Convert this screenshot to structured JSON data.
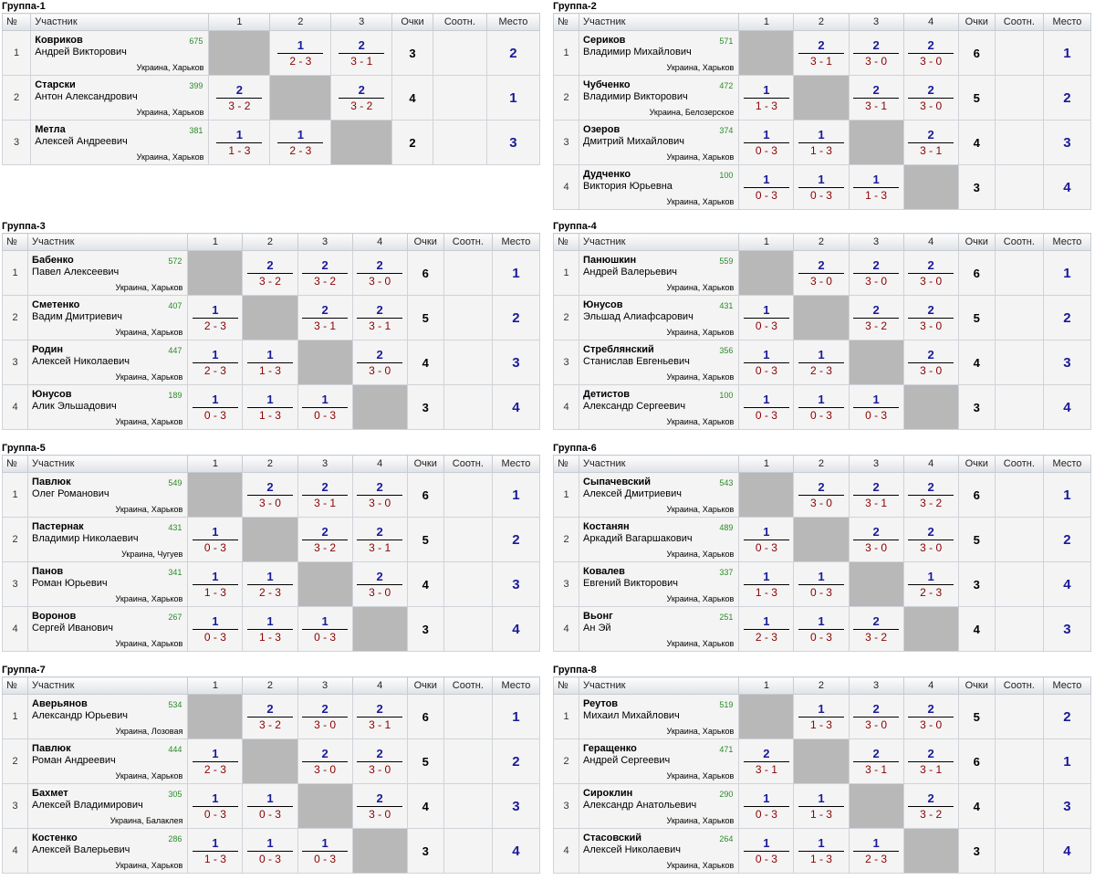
{
  "headers": {
    "num": "№",
    "player": "Участник",
    "points": "Очки",
    "ratio": "Соотн.",
    "place": "Место"
  },
  "groups": [
    {
      "title": "Группа-1",
      "cols": [
        "1",
        "2",
        "3"
      ],
      "rows": [
        {
          "n": "1",
          "last": "Ковриков",
          "first": "Андрей Викторович",
          "rating": "675",
          "loc": "Украина, Харьков",
          "cells": [
            null,
            {
              "p": "1",
              "s": "2 - 3"
            },
            {
              "p": "2",
              "s": "3 - 1"
            }
          ],
          "score": "3",
          "ratio": "",
          "place": "2"
        },
        {
          "n": "2",
          "last": "Старски",
          "first": "Антон Александрович",
          "rating": "399",
          "loc": "Украина, Харьков",
          "cells": [
            {
              "p": "2",
              "s": "3 - 2"
            },
            null,
            {
              "p": "2",
              "s": "3 - 2"
            }
          ],
          "score": "4",
          "ratio": "",
          "place": "1"
        },
        {
          "n": "3",
          "last": "Метла",
          "first": "Алексей Андреевич",
          "rating": "381",
          "loc": "Украина, Харьков",
          "cells": [
            {
              "p": "1",
              "s": "1 - 3"
            },
            {
              "p": "1",
              "s": "2 - 3"
            },
            null
          ],
          "score": "2",
          "ratio": "",
          "place": "3"
        }
      ]
    },
    {
      "title": "Группа-2",
      "cols": [
        "1",
        "2",
        "3",
        "4"
      ],
      "rows": [
        {
          "n": "1",
          "last": "Сериков",
          "first": "Владимир Михайлович",
          "rating": "571",
          "loc": "Украина, Харьков",
          "cells": [
            null,
            {
              "p": "2",
              "s": "3 - 1"
            },
            {
              "p": "2",
              "s": "3 - 0"
            },
            {
              "p": "2",
              "s": "3 - 0"
            }
          ],
          "score": "6",
          "ratio": "",
          "place": "1"
        },
        {
          "n": "2",
          "last": "Чубченко",
          "first": "Владимир Викторович",
          "rating": "472",
          "loc": "Украина, Белозерское",
          "cells": [
            {
              "p": "1",
              "s": "1 - 3"
            },
            null,
            {
              "p": "2",
              "s": "3 - 1"
            },
            {
              "p": "2",
              "s": "3 - 0"
            }
          ],
          "score": "5",
          "ratio": "",
          "place": "2"
        },
        {
          "n": "3",
          "last": "Озеров",
          "first": "Дмитрий Михайлович",
          "rating": "374",
          "loc": "Украина, Харьков",
          "cells": [
            {
              "p": "1",
              "s": "0 - 3"
            },
            {
              "p": "1",
              "s": "1 - 3"
            },
            null,
            {
              "p": "2",
              "s": "3 - 1"
            }
          ],
          "score": "4",
          "ratio": "",
          "place": "3"
        },
        {
          "n": "4",
          "last": "Дудченко",
          "first": "Виктория Юрьевна",
          "rating": "100",
          "loc": "Украина, Харьков",
          "cells": [
            {
              "p": "1",
              "s": "0 - 3"
            },
            {
              "p": "1",
              "s": "0 - 3"
            },
            {
              "p": "1",
              "s": "1 - 3"
            },
            null
          ],
          "score": "3",
          "ratio": "",
          "place": "4"
        }
      ]
    },
    {
      "title": "Группа-3",
      "cols": [
        "1",
        "2",
        "3",
        "4"
      ],
      "rows": [
        {
          "n": "1",
          "last": "Бабенко",
          "first": "Павел Алексеевич",
          "rating": "572",
          "loc": "Украина, Харьков",
          "cells": [
            null,
            {
              "p": "2",
              "s": "3 - 2"
            },
            {
              "p": "2",
              "s": "3 - 2"
            },
            {
              "p": "2",
              "s": "3 - 0"
            }
          ],
          "score": "6",
          "ratio": "",
          "place": "1"
        },
        {
          "n": "2",
          "last": "Сметенко",
          "first": "Вадим Дмитриевич",
          "rating": "407",
          "loc": "Украина, Харьков",
          "cells": [
            {
              "p": "1",
              "s": "2 - 3"
            },
            null,
            {
              "p": "2",
              "s": "3 - 1"
            },
            {
              "p": "2",
              "s": "3 - 1"
            }
          ],
          "score": "5",
          "ratio": "",
          "place": "2"
        },
        {
          "n": "3",
          "last": "Родин",
          "first": "Алексей Николаевич",
          "rating": "447",
          "loc": "Украина, Харьков",
          "cells": [
            {
              "p": "1",
              "s": "2 - 3"
            },
            {
              "p": "1",
              "s": "1 - 3"
            },
            null,
            {
              "p": "2",
              "s": "3 - 0"
            }
          ],
          "score": "4",
          "ratio": "",
          "place": "3"
        },
        {
          "n": "4",
          "last": "Юнусов",
          "first": "Алик Эльшадович",
          "rating": "189",
          "loc": "Украина, Харьков",
          "cells": [
            {
              "p": "1",
              "s": "0 - 3"
            },
            {
              "p": "1",
              "s": "1 - 3"
            },
            {
              "p": "1",
              "s": "0 - 3"
            },
            null
          ],
          "score": "3",
          "ratio": "",
          "place": "4"
        }
      ]
    },
    {
      "title": "Группа-4",
      "cols": [
        "1",
        "2",
        "3",
        "4"
      ],
      "rows": [
        {
          "n": "1",
          "last": "Панюшкин",
          "first": "Андрей Валерьевич",
          "rating": "559",
          "loc": "Украина, Харьков",
          "cells": [
            null,
            {
              "p": "2",
              "s": "3 - 0"
            },
            {
              "p": "2",
              "s": "3 - 0"
            },
            {
              "p": "2",
              "s": "3 - 0"
            }
          ],
          "score": "6",
          "ratio": "",
          "place": "1"
        },
        {
          "n": "2",
          "last": "Юнусов",
          "first": "Эльшад Алиафсарович",
          "rating": "431",
          "loc": "Украина, Харьков",
          "cells": [
            {
              "p": "1",
              "s": "0 - 3"
            },
            null,
            {
              "p": "2",
              "s": "3 - 2"
            },
            {
              "p": "2",
              "s": "3 - 0"
            }
          ],
          "score": "5",
          "ratio": "",
          "place": "2"
        },
        {
          "n": "3",
          "last": "Стреблянский",
          "first": "Станислав Евгеньевич",
          "rating": "356",
          "loc": "Украина, Харьков",
          "cells": [
            {
              "p": "1",
              "s": "0 - 3"
            },
            {
              "p": "1",
              "s": "2 - 3"
            },
            null,
            {
              "p": "2",
              "s": "3 - 0"
            }
          ],
          "score": "4",
          "ratio": "",
          "place": "3"
        },
        {
          "n": "4",
          "last": "Детистов",
          "first": "Александр Сергеевич",
          "rating": "100",
          "loc": "Украина, Харьков",
          "cells": [
            {
              "p": "1",
              "s": "0 - 3"
            },
            {
              "p": "1",
              "s": "0 - 3"
            },
            {
              "p": "1",
              "s": "0 - 3"
            },
            null
          ],
          "score": "3",
          "ratio": "",
          "place": "4"
        }
      ]
    },
    {
      "title": "Группа-5",
      "cols": [
        "1",
        "2",
        "3",
        "4"
      ],
      "rows": [
        {
          "n": "1",
          "last": "Павлюк",
          "first": "Олег Романович",
          "rating": "549",
          "loc": "Украина, Харьков",
          "cells": [
            null,
            {
              "p": "2",
              "s": "3 - 0"
            },
            {
              "p": "2",
              "s": "3 - 1"
            },
            {
              "p": "2",
              "s": "3 - 0"
            }
          ],
          "score": "6",
          "ratio": "",
          "place": "1"
        },
        {
          "n": "2",
          "last": "Пастернак",
          "first": "Владимир Николаевич",
          "rating": "431",
          "loc": "Украина, Чугуев",
          "cells": [
            {
              "p": "1",
              "s": "0 - 3"
            },
            null,
            {
              "p": "2",
              "s": "3 - 2"
            },
            {
              "p": "2",
              "s": "3 - 1"
            }
          ],
          "score": "5",
          "ratio": "",
          "place": "2"
        },
        {
          "n": "3",
          "last": "Панов",
          "first": "Роман Юрьевич",
          "rating": "341",
          "loc": "Украина, Харьков",
          "cells": [
            {
              "p": "1",
              "s": "1 - 3"
            },
            {
              "p": "1",
              "s": "2 - 3"
            },
            null,
            {
              "p": "2",
              "s": "3 - 0"
            }
          ],
          "score": "4",
          "ratio": "",
          "place": "3"
        },
        {
          "n": "4",
          "last": "Воронов",
          "first": "Сергей Иванович",
          "rating": "267",
          "loc": "Украина, Харьков",
          "cells": [
            {
              "p": "1",
              "s": "0 - 3"
            },
            {
              "p": "1",
              "s": "1 - 3"
            },
            {
              "p": "1",
              "s": "0 - 3"
            },
            null
          ],
          "score": "3",
          "ratio": "",
          "place": "4"
        }
      ]
    },
    {
      "title": "Группа-6",
      "cols": [
        "1",
        "2",
        "3",
        "4"
      ],
      "rows": [
        {
          "n": "1",
          "last": "Сыпачевский",
          "first": "Алексей Дмитриевич",
          "rating": "543",
          "loc": "Украина, Харьков",
          "cells": [
            null,
            {
              "p": "2",
              "s": "3 - 0"
            },
            {
              "p": "2",
              "s": "3 - 1"
            },
            {
              "p": "2",
              "s": "3 - 2"
            }
          ],
          "score": "6",
          "ratio": "",
          "place": "1"
        },
        {
          "n": "2",
          "last": "Костанян",
          "first": "Аркадий Вагаршакович",
          "rating": "489",
          "loc": "Украина, Харьков",
          "cells": [
            {
              "p": "1",
              "s": "0 - 3"
            },
            null,
            {
              "p": "2",
              "s": "3 - 0"
            },
            {
              "p": "2",
              "s": "3 - 0"
            }
          ],
          "score": "5",
          "ratio": "",
          "place": "2"
        },
        {
          "n": "3",
          "last": "Ковалев",
          "first": "Евгений Викторович",
          "rating": "337",
          "loc": "Украина, Харьков",
          "cells": [
            {
              "p": "1",
              "s": "1 - 3"
            },
            {
              "p": "1",
              "s": "0 - 3"
            },
            null,
            {
              "p": "1",
              "s": "2 - 3"
            }
          ],
          "score": "3",
          "ratio": "",
          "place": "4"
        },
        {
          "n": "4",
          "last": "Вьонг",
          "first": "Ан Эй",
          "rating": "251",
          "loc": "Украина, Харьков",
          "cells": [
            {
              "p": "1",
              "s": "2 - 3"
            },
            {
              "p": "1",
              "s": "0 - 3"
            },
            {
              "p": "2",
              "s": "3 - 2"
            },
            null
          ],
          "score": "4",
          "ratio": "",
          "place": "3"
        }
      ]
    },
    {
      "title": "Группа-7",
      "cols": [
        "1",
        "2",
        "3",
        "4"
      ],
      "rows": [
        {
          "n": "1",
          "last": "Аверьянов",
          "first": "Александр Юрьевич",
          "rating": "534",
          "loc": "Украина, Лозовая",
          "cells": [
            null,
            {
              "p": "2",
              "s": "3 - 2"
            },
            {
              "p": "2",
              "s": "3 - 0"
            },
            {
              "p": "2",
              "s": "3 - 1"
            }
          ],
          "score": "6",
          "ratio": "",
          "place": "1"
        },
        {
          "n": "2",
          "last": "Павлюк",
          "first": "Роман Андреевич",
          "rating": "444",
          "loc": "Украина, Харьков",
          "cells": [
            {
              "p": "1",
              "s": "2 - 3"
            },
            null,
            {
              "p": "2",
              "s": "3 - 0"
            },
            {
              "p": "2",
              "s": "3 - 0"
            }
          ],
          "score": "5",
          "ratio": "",
          "place": "2"
        },
        {
          "n": "3",
          "last": "Бахмет",
          "first": "Алексей Владимирович",
          "rating": "305",
          "loc": "Украина, Балаклея",
          "cells": [
            {
              "p": "1",
              "s": "0 - 3"
            },
            {
              "p": "1",
              "s": "0 - 3"
            },
            null,
            {
              "p": "2",
              "s": "3 - 0"
            }
          ],
          "score": "4",
          "ratio": "",
          "place": "3"
        },
        {
          "n": "4",
          "last": "Костенко",
          "first": "Алексей Валерьевич",
          "rating": "286",
          "loc": "Украина, Харьков",
          "cells": [
            {
              "p": "1",
              "s": "1 - 3"
            },
            {
              "p": "1",
              "s": "0 - 3"
            },
            {
              "p": "1",
              "s": "0 - 3"
            },
            null
          ],
          "score": "3",
          "ratio": "",
          "place": "4"
        }
      ]
    },
    {
      "title": "Группа-8",
      "cols": [
        "1",
        "2",
        "3",
        "4"
      ],
      "rows": [
        {
          "n": "1",
          "last": "Реутов",
          "first": "Михаил Михайлович",
          "rating": "519",
          "loc": "Украина, Харьков",
          "cells": [
            null,
            {
              "p": "1",
              "s": "1 - 3"
            },
            {
              "p": "2",
              "s": "3 - 0"
            },
            {
              "p": "2",
              "s": "3 - 0"
            }
          ],
          "score": "5",
          "ratio": "",
          "place": "2"
        },
        {
          "n": "2",
          "last": "Геращенко",
          "first": "Андрей Сергеевич",
          "rating": "471",
          "loc": "Украина, Харьков",
          "cells": [
            {
              "p": "2",
              "s": "3 - 1"
            },
            null,
            {
              "p": "2",
              "s": "3 - 1"
            },
            {
              "p": "2",
              "s": "3 - 1"
            }
          ],
          "score": "6",
          "ratio": "",
          "place": "1"
        },
        {
          "n": "3",
          "last": "Сироклин",
          "first": "Александр Анатольевич",
          "rating": "290",
          "loc": "Украина, Харьков",
          "cells": [
            {
              "p": "1",
              "s": "0 - 3"
            },
            {
              "p": "1",
              "s": "1 - 3"
            },
            null,
            {
              "p": "2",
              "s": "3 - 2"
            }
          ],
          "score": "4",
          "ratio": "",
          "place": "3"
        },
        {
          "n": "4",
          "last": "Стасовский",
          "first": "Алексей Николаевич",
          "rating": "264",
          "loc": "Украина, Харьков",
          "cells": [
            {
              "p": "1",
              "s": "0 - 3"
            },
            {
              "p": "1",
              "s": "1 - 3"
            },
            {
              "p": "1",
              "s": "2 - 3"
            },
            null
          ],
          "score": "3",
          "ratio": "",
          "place": "4"
        }
      ]
    }
  ]
}
